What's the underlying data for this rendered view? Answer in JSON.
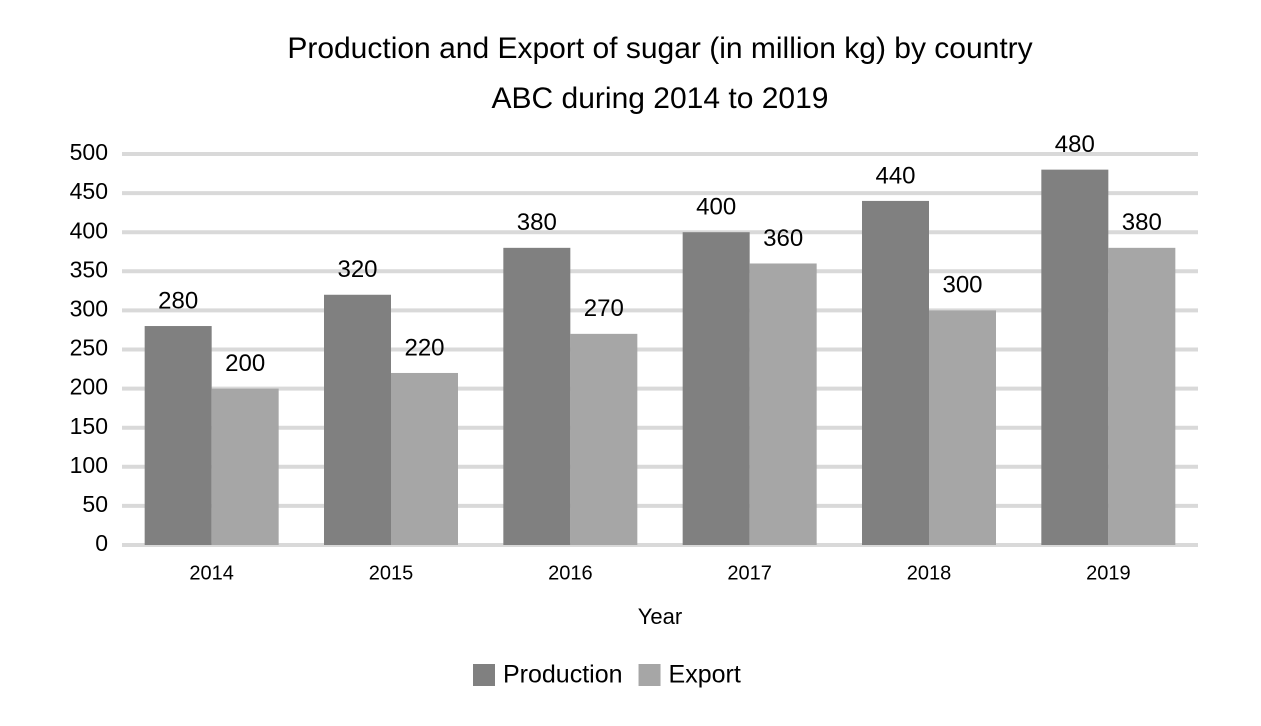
{
  "chart_data": {
    "type": "bar",
    "title": [
      "Production and Export of sugar (in million kg) by country",
      "ABC during 2014 to 2019"
    ],
    "x_label": "Year",
    "categories": [
      "2014",
      "2015",
      "2016",
      "2017",
      "2018",
      "2019"
    ],
    "series": [
      {
        "name": "Production",
        "color": "#808080",
        "values": [
          280,
          320,
          380,
          400,
          440,
          480
        ]
      },
      {
        "name": "Export",
        "color": "#a6a6a6",
        "values": [
          200,
          220,
          270,
          360,
          300,
          380
        ]
      }
    ],
    "ylim": [
      0,
      500
    ],
    "yticks": [
      0,
      50,
      100,
      150,
      200,
      250,
      300,
      350,
      400,
      450,
      500
    ],
    "grid": true,
    "legend": "bottom"
  }
}
